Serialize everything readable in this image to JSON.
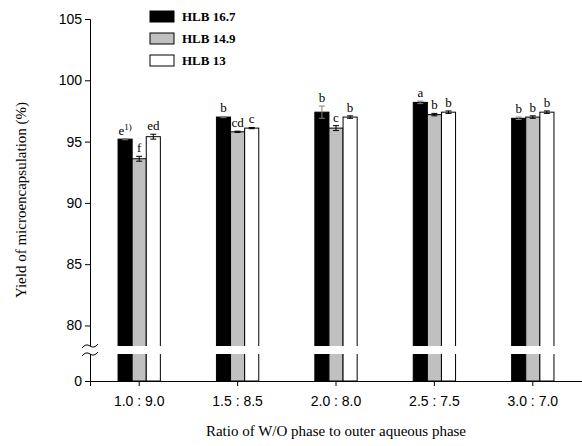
{
  "chart_data": {
    "type": "bar",
    "x_label": "Ratio of W/O phase to outer aqueous phase",
    "y_label": "Yield of microencapsulation (%)",
    "categories": [
      "1.0 : 9.0",
      "1.5 : 8.5",
      "2.0 : 8.0",
      "2.5 : 7.5",
      "3.0 : 7.0"
    ],
    "series": [
      {
        "name": "HLB 16.7",
        "color": "#000000",
        "values": [
          95.2,
          97.0,
          97.4,
          98.2,
          96.9
        ],
        "errors": [
          0.05,
          0.05,
          0.5,
          0.1,
          0.1
        ],
        "letters": [
          "e1)",
          "b",
          "b",
          "a",
          "b"
        ]
      },
      {
        "name": "HLB 14.9",
        "color": "#c0c0c0",
        "values": [
          93.6,
          95.8,
          96.1,
          97.2,
          97.0
        ],
        "errors": [
          0.2,
          0.05,
          0.2,
          0.1,
          0.1
        ],
        "letters": [
          "f",
          "cd",
          "c",
          "b",
          "b"
        ]
      },
      {
        "name": "HLB 13",
        "color": "#ffffff",
        "values": [
          95.4,
          96.1,
          97.0,
          97.4,
          97.4
        ],
        "errors": [
          0.2,
          0.05,
          0.1,
          0.1,
          0.1
        ],
        "letters": [
          "ed",
          "c",
          "b",
          "b",
          "b"
        ]
      }
    ],
    "ylim": [
      0,
      105
    ],
    "yticks": [
      0,
      80,
      85,
      90,
      95,
      100,
      105
    ],
    "legend": "upper left",
    "grid": false
  }
}
